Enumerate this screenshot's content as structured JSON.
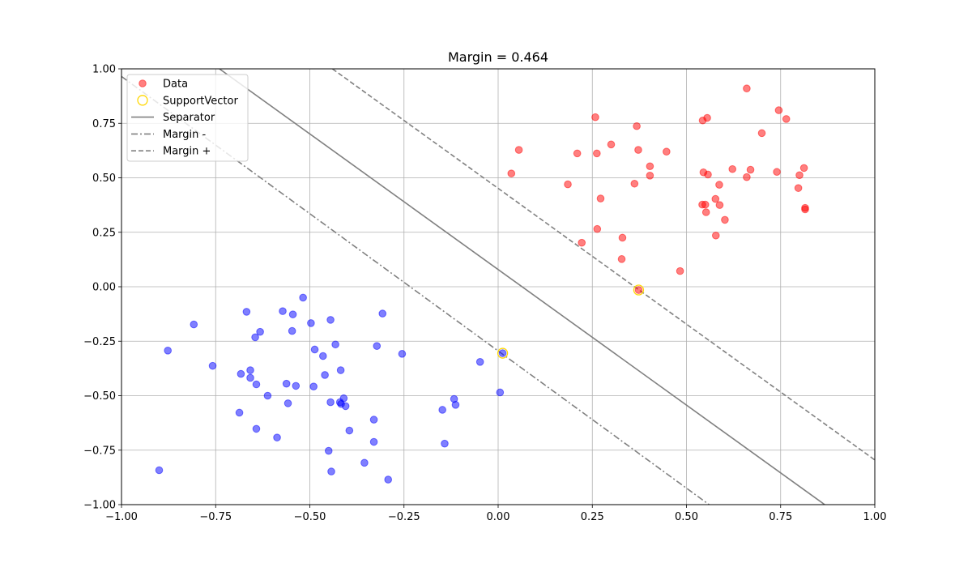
{
  "chart_data": {
    "type": "scatter",
    "title": "Margin = 0.464",
    "xlabel": "",
    "ylabel": "",
    "xlim": [
      -1.0,
      1.0
    ],
    "ylim": [
      -1.0,
      1.0
    ],
    "grid": true,
    "legend_position": "top-left",
    "x_ticks": [
      "−1.00",
      "−0.75",
      "−0.50",
      "−0.25",
      "0.00",
      "0.25",
      "0.50",
      "0.75",
      "1.00"
    ],
    "y_ticks": [
      "−1.00",
      "−0.75",
      "−0.50",
      "−0.25",
      "0.00",
      "0.25",
      "0.50",
      "0.75",
      "1.00"
    ],
    "legend": [
      {
        "label": "Data",
        "kind": "dot",
        "color": "#ff0000"
      },
      {
        "label": "SupportVector",
        "kind": "ring",
        "color": "#ffd700"
      },
      {
        "label": "Separator",
        "kind": "solid",
        "color": "#808080"
      },
      {
        "label": "Margin -",
        "kind": "dashdot",
        "color": "#808080"
      },
      {
        "label": "Margin +",
        "kind": "dashed",
        "color": "#808080"
      }
    ],
    "series": [
      {
        "name": "Data",
        "class": "positive",
        "color": "#ff0000",
        "points": [
          [
            0.66,
            0.91
          ],
          [
            0.745,
            0.81
          ],
          [
            0.765,
            0.77
          ],
          [
            0.555,
            0.775
          ],
          [
            0.543,
            0.763
          ],
          [
            0.7,
            0.705
          ],
          [
            0.258,
            0.778
          ],
          [
            0.368,
            0.737
          ],
          [
            0.055,
            0.628
          ],
          [
            0.3,
            0.653
          ],
          [
            0.21,
            0.612
          ],
          [
            0.262,
            0.612
          ],
          [
            0.372,
            0.628
          ],
          [
            0.447,
            0.62
          ],
          [
            0.403,
            0.553
          ],
          [
            0.403,
            0.51
          ],
          [
            0.035,
            0.52
          ],
          [
            0.545,
            0.525
          ],
          [
            0.557,
            0.515
          ],
          [
            0.622,
            0.54
          ],
          [
            0.67,
            0.537
          ],
          [
            0.74,
            0.527
          ],
          [
            0.812,
            0.545
          ],
          [
            0.8,
            0.512
          ],
          [
            0.66,
            0.503
          ],
          [
            0.185,
            0.47
          ],
          [
            0.362,
            0.473
          ],
          [
            0.587,
            0.468
          ],
          [
            0.797,
            0.453
          ],
          [
            0.272,
            0.405
          ],
          [
            0.577,
            0.403
          ],
          [
            0.542,
            0.377
          ],
          [
            0.55,
            0.377
          ],
          [
            0.588,
            0.375
          ],
          [
            0.815,
            0.362
          ],
          [
            0.815,
            0.355
          ],
          [
            0.552,
            0.342
          ],
          [
            0.602,
            0.307
          ],
          [
            0.263,
            0.265
          ],
          [
            0.578,
            0.235
          ],
          [
            0.33,
            0.225
          ],
          [
            0.222,
            0.202
          ],
          [
            0.328,
            0.127
          ],
          [
            0.483,
            0.072
          ],
          [
            0.373,
            -0.015
          ]
        ]
      },
      {
        "name": "",
        "class": "negative",
        "color": "#0000ff",
        "points": [
          [
            -0.518,
            -0.05
          ],
          [
            -0.668,
            -0.115
          ],
          [
            -0.572,
            -0.112
          ],
          [
            -0.545,
            -0.127
          ],
          [
            -0.307,
            -0.123
          ],
          [
            -0.445,
            -0.152
          ],
          [
            -0.808,
            -0.173
          ],
          [
            -0.497,
            -0.167
          ],
          [
            -0.632,
            -0.207
          ],
          [
            -0.547,
            -0.203
          ],
          [
            -0.645,
            -0.232
          ],
          [
            -0.432,
            -0.265
          ],
          [
            -0.322,
            -0.272
          ],
          [
            -0.487,
            -0.288
          ],
          [
            -0.877,
            -0.293
          ],
          [
            -0.255,
            -0.308
          ],
          [
            -0.465,
            -0.318
          ],
          [
            -0.048,
            -0.345
          ],
          [
            -0.758,
            -0.363
          ],
          [
            -0.658,
            -0.383
          ],
          [
            -0.418,
            -0.383
          ],
          [
            -0.683,
            -0.4
          ],
          [
            -0.46,
            -0.405
          ],
          [
            -0.658,
            -0.418
          ],
          [
            -0.562,
            -0.445
          ],
          [
            -0.642,
            -0.448
          ],
          [
            -0.537,
            -0.455
          ],
          [
            -0.49,
            -0.458
          ],
          [
            0.005,
            -0.485
          ],
          [
            -0.612,
            -0.5
          ],
          [
            -0.41,
            -0.512
          ],
          [
            -0.117,
            -0.515
          ],
          [
            -0.558,
            -0.535
          ],
          [
            -0.445,
            -0.53
          ],
          [
            -0.42,
            -0.53
          ],
          [
            -0.417,
            -0.538
          ],
          [
            -0.113,
            -0.542
          ],
          [
            -0.405,
            -0.548
          ],
          [
            -0.148,
            -0.565
          ],
          [
            -0.33,
            -0.61
          ],
          [
            -0.687,
            -0.578
          ],
          [
            -0.642,
            -0.652
          ],
          [
            -0.395,
            -0.66
          ],
          [
            -0.587,
            -0.692
          ],
          [
            -0.33,
            -0.712
          ],
          [
            -0.142,
            -0.72
          ],
          [
            -0.45,
            -0.753
          ],
          [
            -0.355,
            -0.808
          ],
          [
            -0.9,
            -0.842
          ],
          [
            -0.443,
            -0.848
          ],
          [
            -0.292,
            -0.885
          ],
          [
            0.012,
            -0.305
          ]
        ]
      },
      {
        "name": "SupportVector",
        "color": "#ffd700",
        "points": [
          [
            0.373,
            -0.015
          ],
          [
            0.012,
            -0.305
          ]
        ]
      }
    ],
    "lines": [
      {
        "name": "Separator",
        "style": "solid",
        "color": "#808080",
        "points": [
          [
            -0.74,
            1.0
          ],
          [
            0.867,
            -1.0
          ]
        ]
      },
      {
        "name": "Margin -",
        "style": "dashdot",
        "color": "#808080",
        "points": [
          [
            -1.0,
            0.965
          ],
          [
            0.56,
            -1.0
          ]
        ]
      },
      {
        "name": "Margin +",
        "style": "dashed",
        "color": "#808080",
        "points": [
          [
            -0.44,
            1.0
          ],
          [
            1.0,
            -0.795
          ]
        ]
      }
    ]
  }
}
